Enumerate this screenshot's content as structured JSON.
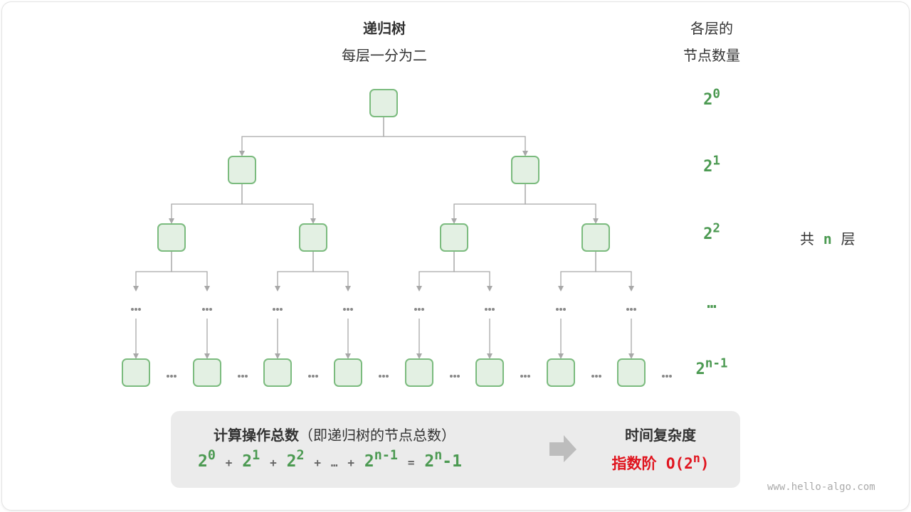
{
  "header": {
    "title": "递归树",
    "subtitle": "每层一分为二",
    "count_title_1": "各层的",
    "count_title_2": "节点数量"
  },
  "levels": [
    {
      "base": "2",
      "exp": "0"
    },
    {
      "base": "2",
      "exp": "1"
    },
    {
      "base": "2",
      "exp": "2"
    },
    {
      "base": "…",
      "exp": ""
    },
    {
      "base": "2",
      "exp": "n-1"
    }
  ],
  "total_layers": {
    "prefix": "共",
    "n": "n",
    "suffix": "层"
  },
  "summary": {
    "ops_title": "计算操作总数",
    "ops_note": "（即递归树的节点总数）",
    "formula": {
      "t0": {
        "base": "2",
        "exp": "0"
      },
      "t1": {
        "base": "2",
        "exp": "1"
      },
      "t2": {
        "base": "2",
        "exp": "2"
      },
      "ellipsis": "…",
      "t3": {
        "base": "2",
        "exp": "n-1"
      },
      "plus": "+",
      "equals": "=",
      "result": {
        "base": "2",
        "exp": "n",
        "tail": "-1"
      }
    },
    "complexity_title": "时间复杂度",
    "complexity_label": "指数阶",
    "complexity_value": {
      "prefix": "O(2",
      "exp": "n",
      "suffix": ")"
    }
  },
  "watermark": "www.hello-algo.com",
  "colors": {
    "node_fill": "#e3f0e3",
    "node_stroke": "#7bbb7e",
    "edge": "#a8a8a8",
    "accent_green": "#4c9a52",
    "accent_red": "#e0141e"
  }
}
